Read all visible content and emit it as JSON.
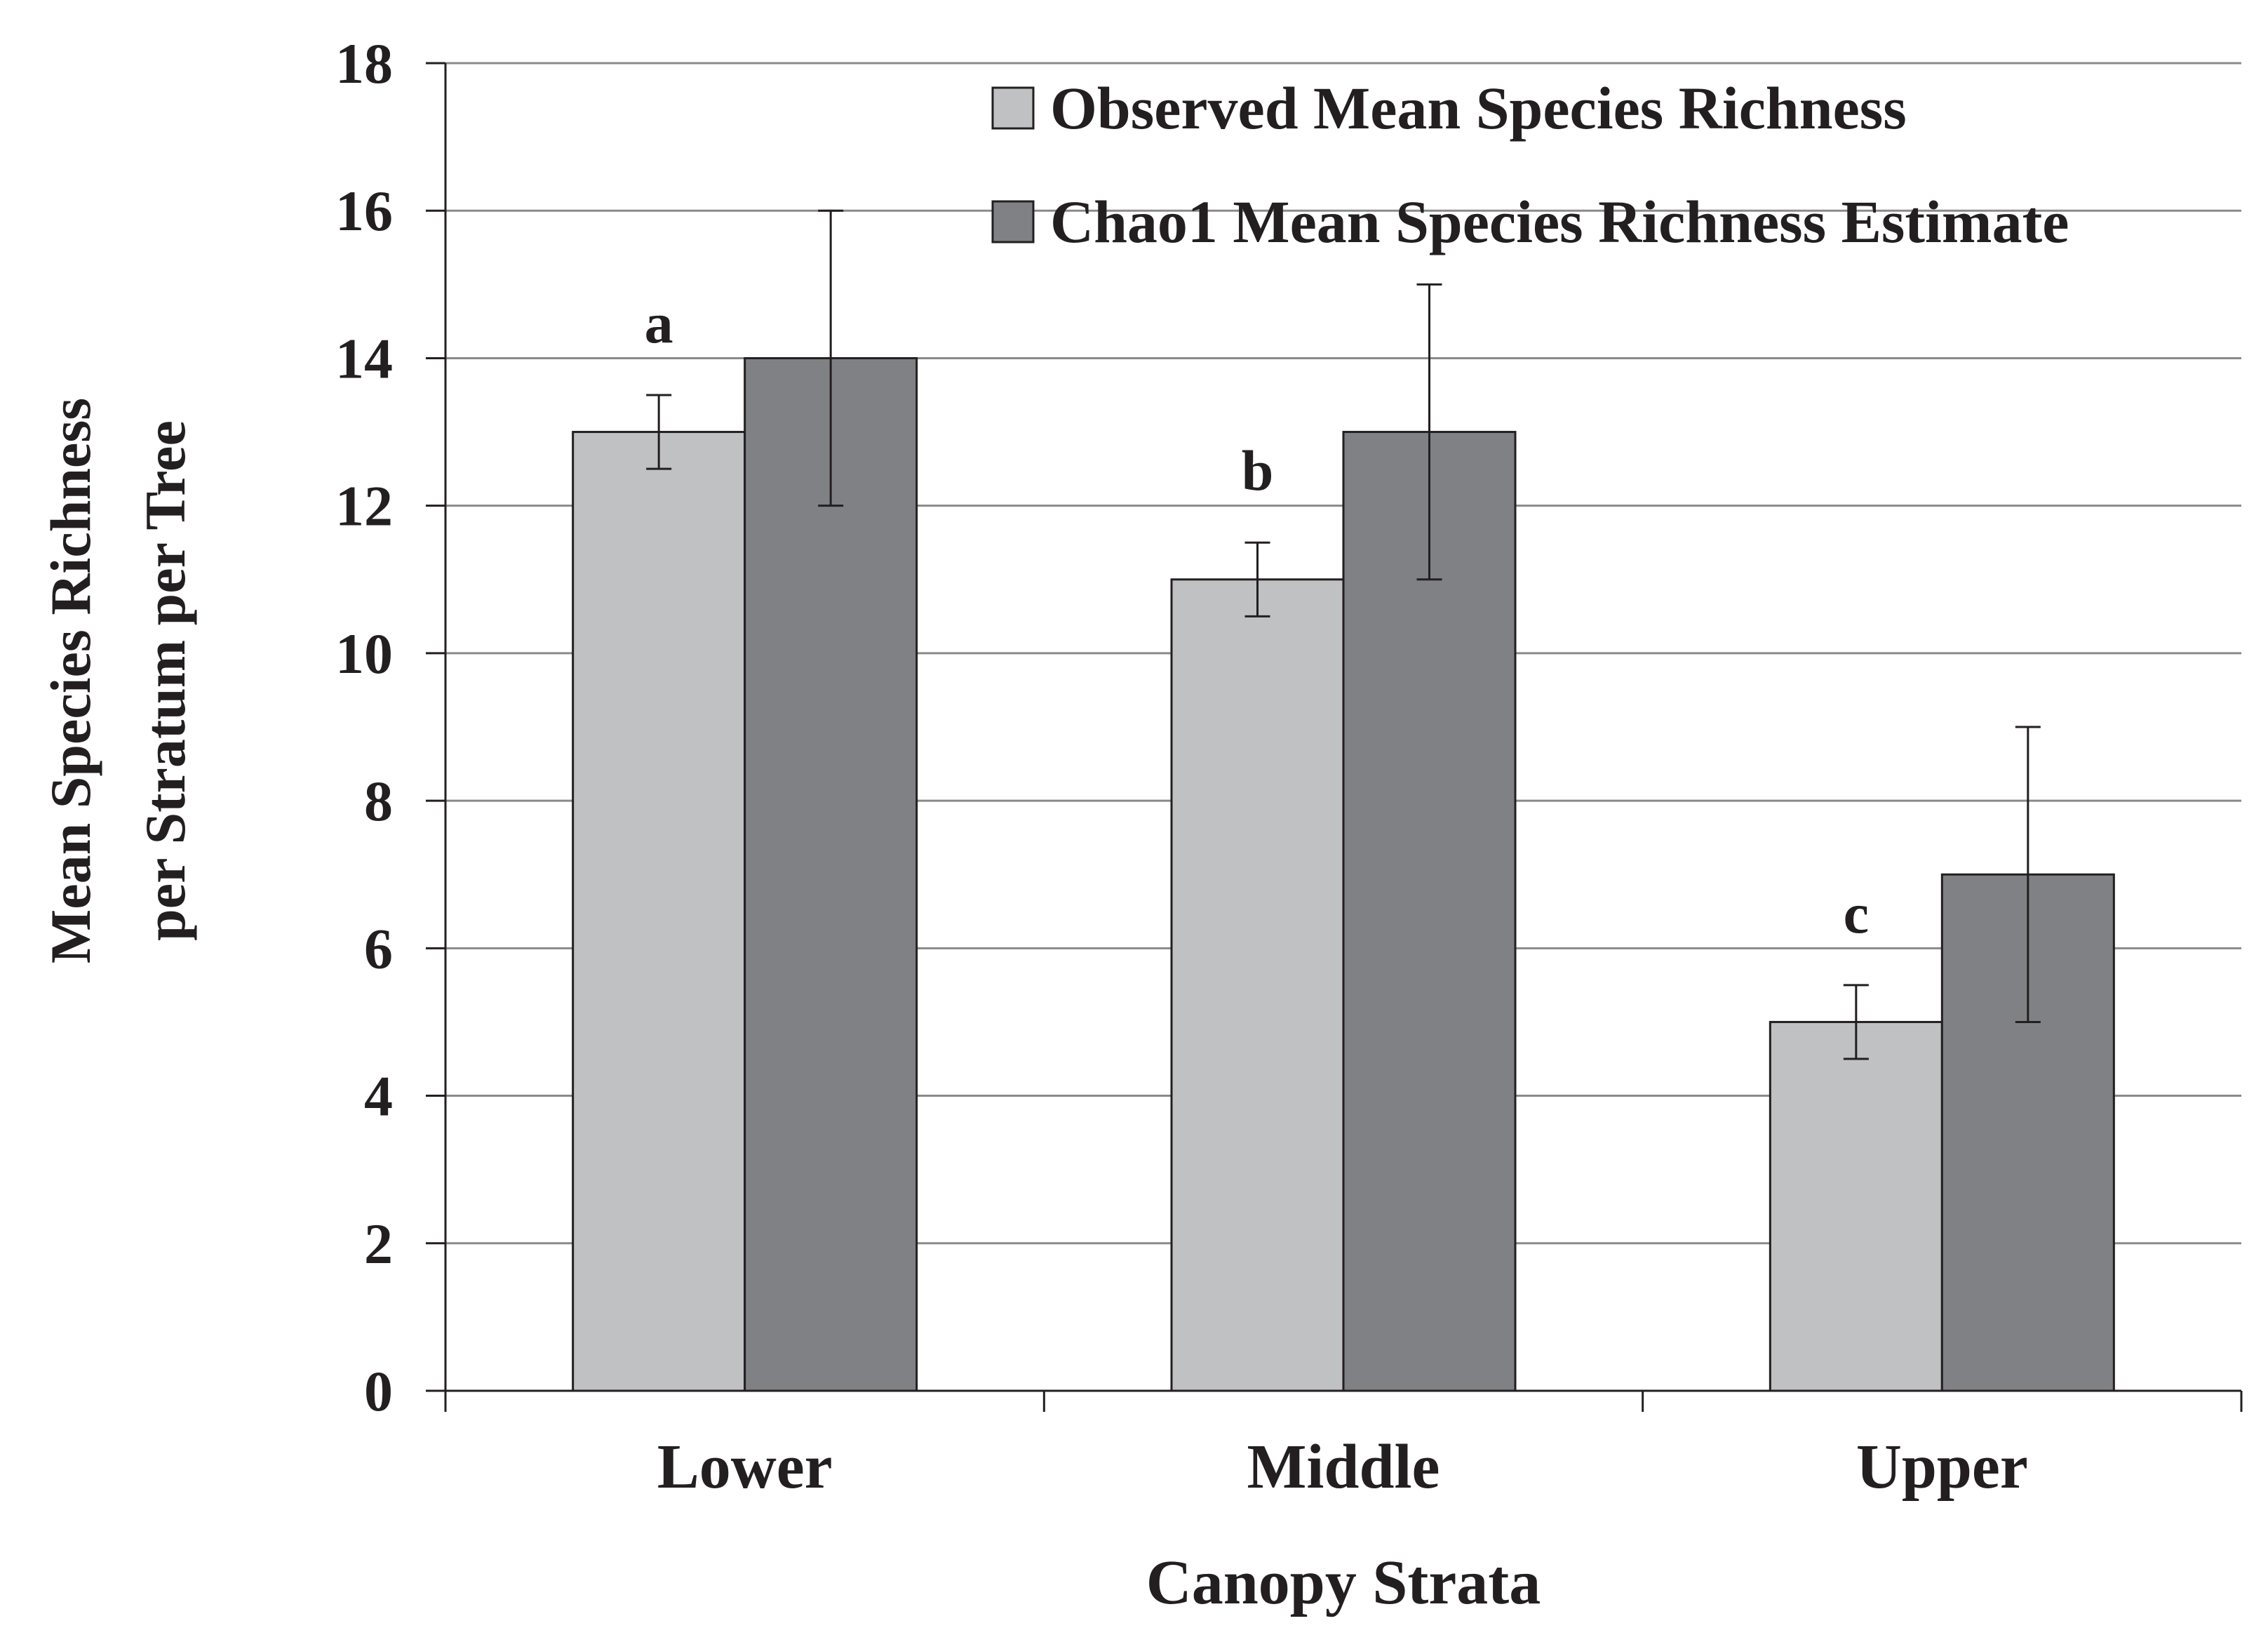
{
  "chart_data": {
    "type": "bar",
    "title": "",
    "xlabel": "Canopy Strata",
    "ylabel_lines": [
      "Mean Species Richness",
      "per Stratum per Tree"
    ],
    "categories": [
      "Lower",
      "Middle",
      "Upper"
    ],
    "ylim": [
      0,
      18
    ],
    "yticks": [
      0,
      2,
      4,
      6,
      8,
      10,
      12,
      14,
      16,
      18
    ],
    "grid": true,
    "legend_position": "top-right",
    "series": [
      {
        "name": "Observed Mean Species Richness",
        "color": "#c0c1c3",
        "values": [
          13,
          11,
          5
        ],
        "error_low": [
          12.5,
          10.5,
          4.5
        ],
        "error_high": [
          13.5,
          11.5,
          5.5
        ]
      },
      {
        "name": "Chao1 Mean Species Richness Estimate",
        "color": "#808184",
        "values": [
          14,
          13,
          7
        ],
        "error_low": [
          12,
          11,
          5
        ],
        "error_high": [
          16,
          15,
          9
        ]
      }
    ],
    "significance_letters": [
      "a",
      "b",
      "c"
    ]
  }
}
